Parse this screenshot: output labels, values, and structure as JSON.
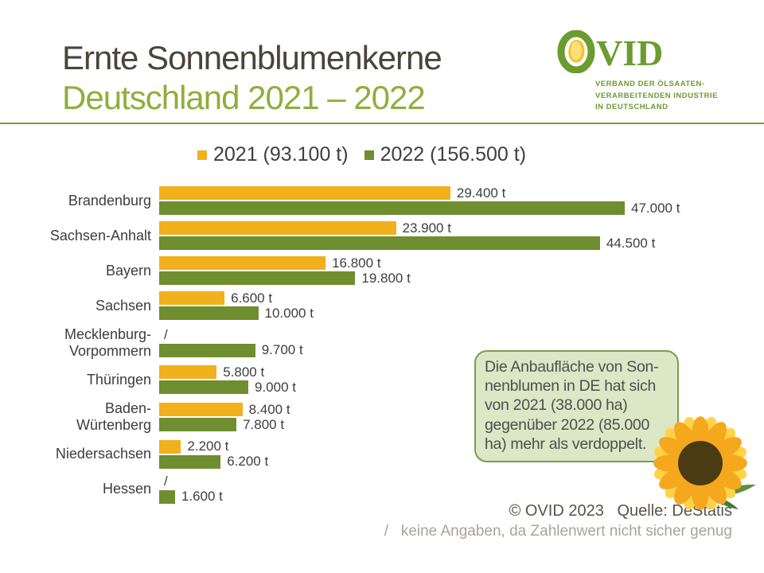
{
  "header": {
    "title_line1": "Ernte Sonnenblumenkerne",
    "title_line2": "Deutschland 2021 – 2022",
    "logo": {
      "name": "OVID",
      "subtext": "VERBAND DER ÖLSAATEN-\nVERARBEITENDEN INDUSTRIE\nIN DEUTSCHLAND"
    }
  },
  "chart_data": {
    "type": "bar",
    "orientation": "horizontal",
    "title": "Ernte Sonnenblumenkerne Deutschland 2021 – 2022",
    "unit": "t",
    "xlim": [
      0,
      47000
    ],
    "grid": false,
    "legend_position": "top-center",
    "categories": [
      "Brandenburg",
      "Sachsen-Anhalt",
      "Bayern",
      "Sachsen",
      "Mecklenburg-\nVorpommern",
      "Thüringen",
      "Baden-\nWürtenberg",
      "Niedersachsen",
      "Hessen"
    ],
    "series": [
      {
        "name": "2021",
        "legend_label": "2021 (93.100 t)",
        "color": "#F2B01D",
        "values": [
          29400,
          23900,
          16800,
          6600,
          null,
          5800,
          8400,
          2200,
          null
        ],
        "labels": [
          "29.400 t",
          "23.900 t",
          "16.800 t",
          "6.600 t",
          "/",
          "5.800 t",
          "8.400 t",
          "2.200 t",
          "/"
        ]
      },
      {
        "name": "2022",
        "legend_label": "2022 (156.500 t)",
        "color": "#6F8E2F",
        "values": [
          47000,
          44500,
          19800,
          10000,
          9700,
          9000,
          7800,
          6200,
          1600
        ],
        "labels": [
          "47.000 t",
          "44.500 t",
          "19.800 t",
          "10.000 t",
          "9.700 t",
          "9.000 t",
          "7.800 t",
          "6.200 t",
          "1.600 t"
        ]
      }
    ],
    "no_data_marker": "/"
  },
  "callout": {
    "text": "Die Anbaufläche von Son-\nnenblumen in DE hat sich\nvon 2021 (38.000 ha)\ngegenüber 2022 (85.000\nha) mehr als verdoppelt."
  },
  "footer": {
    "copyright": "© OVID 2023   Quelle: DeStatis",
    "note": "/   keine Angaben, da Zahlenwert nicht sicher genug"
  },
  "colors": {
    "title_dark": "#4b443c",
    "title_green": "#8fae3a",
    "divider_green": "#7d973c",
    "bar_2021_yellow": "#F2B01D",
    "bar_2022_green": "#6F8E2F",
    "logo_green": "#6b9c2f",
    "callout_bg": "#dbe7c5",
    "callout_border": "#7c9c50",
    "sunflower_petal_outer": "#FFD348",
    "sunflower_petal_inner": "#F5A81E",
    "sunflower_center": "#4a3b12",
    "sunflower_leaf": "#5f9140"
  }
}
